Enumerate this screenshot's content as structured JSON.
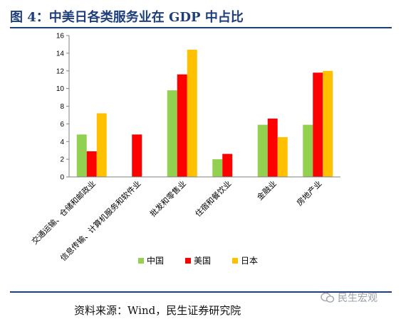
{
  "figure": {
    "title": "图 4：中美日各类服务业在 GDP 中占比",
    "source": "资料来源：Wind，民生证券研究院",
    "watermark": "民生宏观"
  },
  "chart_data": {
    "type": "bar",
    "title": "",
    "xlabel": "",
    "ylabel": "",
    "ylim": [
      0,
      16
    ],
    "yticks": [
      0,
      2,
      4,
      6,
      8,
      10,
      12,
      14,
      16
    ],
    "grid": false,
    "legend_position": "bottom",
    "categories": [
      "交通运输、仓储和邮政业",
      "信息传输、计算机服务和软件业",
      "批发和零售业",
      "住宿和餐饮业",
      "金融业",
      "房地产业"
    ],
    "series": [
      {
        "name": "中国",
        "color": "#92d050",
        "values": [
          4.8,
          null,
          9.8,
          2.0,
          5.9,
          5.9
        ]
      },
      {
        "name": "美国",
        "color": "#ff0000",
        "values": [
          2.9,
          4.8,
          11.6,
          2.6,
          6.6,
          11.8
        ]
      },
      {
        "name": "日本",
        "color": "#ffc000",
        "values": [
          7.2,
          null,
          14.4,
          null,
          4.5,
          12.0
        ]
      }
    ]
  }
}
